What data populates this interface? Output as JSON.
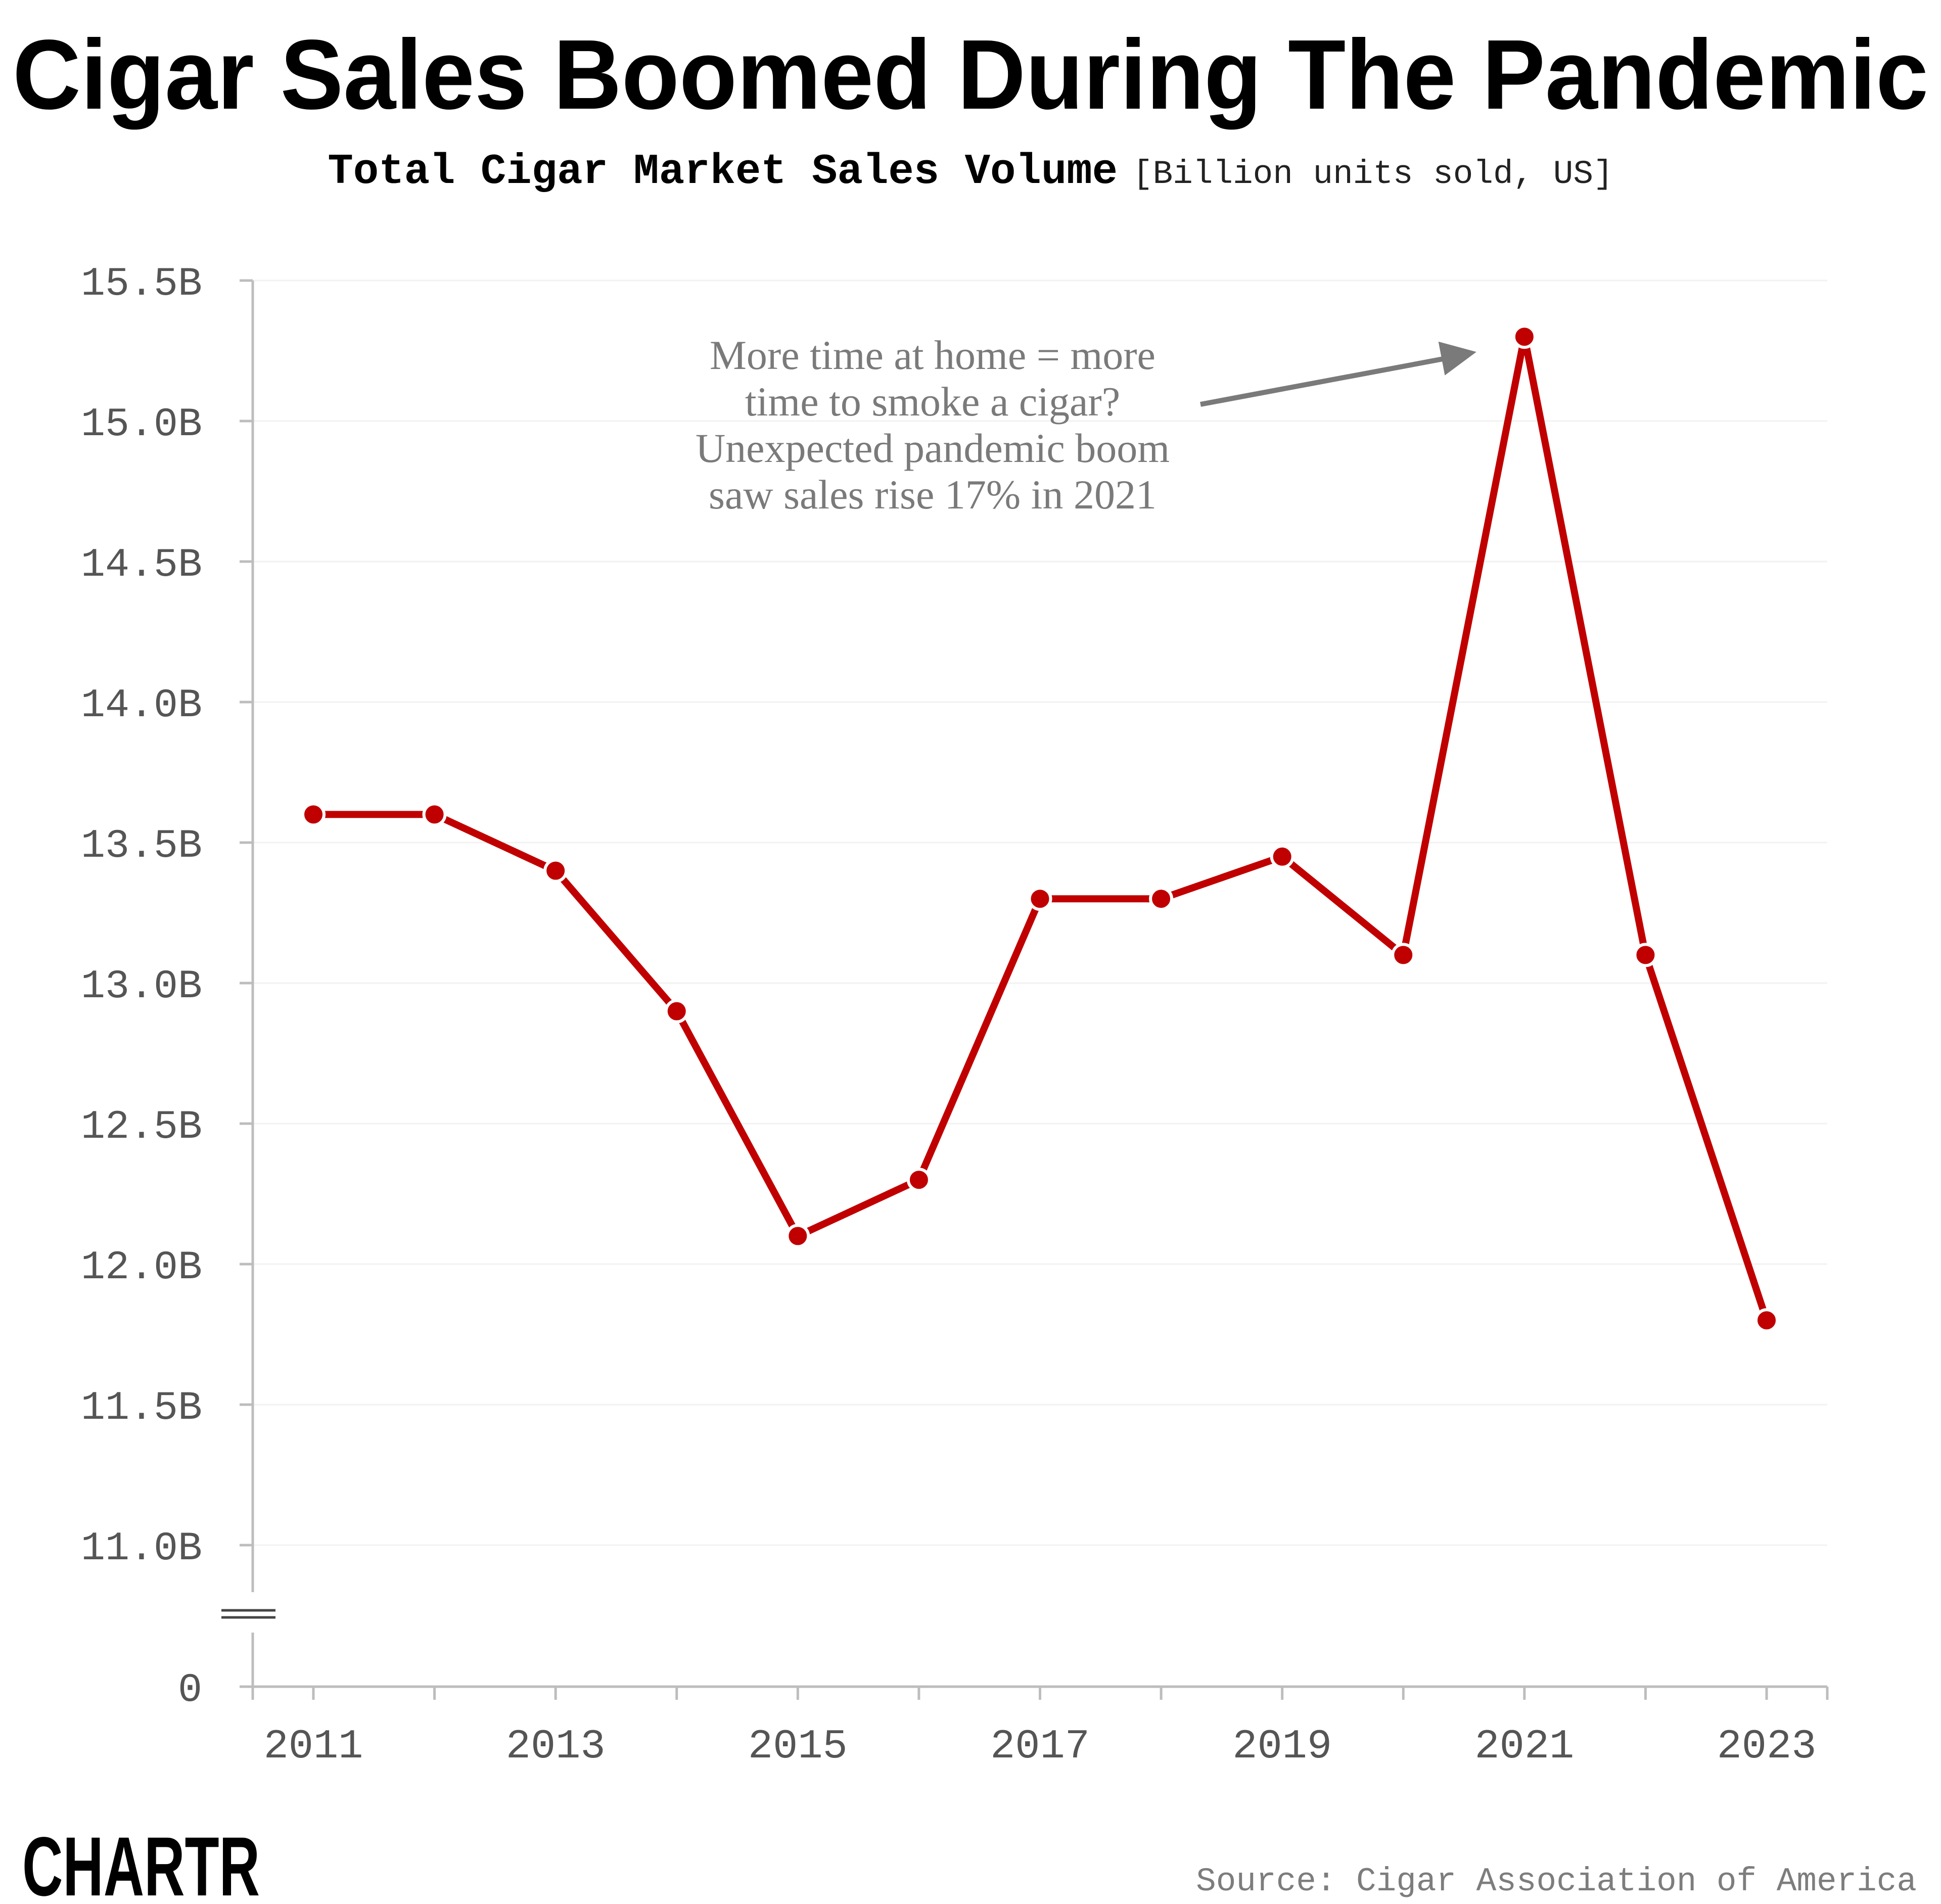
{
  "colors": {
    "line": "#c00000",
    "axis": "#bdbdbd",
    "grid": "#f2f2f2",
    "arrow": "#7a7a7a",
    "background": "#ffffff"
  },
  "chart_data": {
    "type": "line",
    "title": "Cigar Sales Boomed During The Pandemic",
    "subtitle": "Total Cigar Market Sales Volume",
    "unit_note": "[Billion units sold, US]",
    "x": [
      2011,
      2012,
      2013,
      2014,
      2015,
      2016,
      2017,
      2018,
      2019,
      2020,
      2021,
      2022,
      2023
    ],
    "x_tick_labels": [
      "2011",
      "2013",
      "2015",
      "2017",
      "2019",
      "2021",
      "2023"
    ],
    "series": [
      {
        "values": [
          13.6,
          13.6,
          13.4,
          12.9,
          12.1,
          12.3,
          13.3,
          13.3,
          13.45,
          13.1,
          15.3,
          13.1,
          11.8
        ]
      }
    ],
    "y_ticks": [
      {
        "value": 15.5,
        "label": "15.5B"
      },
      {
        "value": 15.0,
        "label": "15.0B"
      },
      {
        "value": 14.5,
        "label": "14.5B"
      },
      {
        "value": 14.0,
        "label": "14.0B"
      },
      {
        "value": 13.5,
        "label": "13.5B"
      },
      {
        "value": 13.0,
        "label": "13.0B"
      },
      {
        "value": 12.5,
        "label": "12.5B"
      },
      {
        "value": 12.0,
        "label": "12.0B"
      },
      {
        "value": 11.5,
        "label": "11.5B"
      },
      {
        "value": 11.0,
        "label": "11.0B"
      },
      {
        "value": 0,
        "label": "0"
      }
    ],
    "ylim": [
      11.0,
      15.5
    ],
    "y_axis_break": true,
    "grid": true,
    "legend": "none",
    "annotation": {
      "lines": [
        "More time at home = more",
        "time to smoke a cigar?",
        "Unexpected pandemic boom",
        "saw sales rise 17% in 2021"
      ],
      "points_to_year": 2021
    }
  },
  "footer": {
    "logo": "CHARTR",
    "source": "Source: Cigar Association of America"
  }
}
